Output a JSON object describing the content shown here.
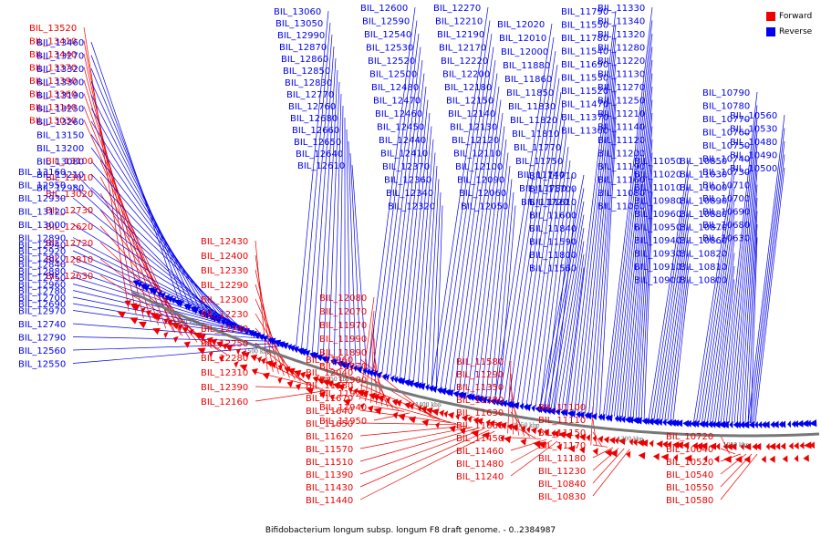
{
  "colors": {
    "forward": "#ee0000",
    "reverse": "#0000ee",
    "backbone": "#777777"
  },
  "legend": [
    {
      "label": "Forward",
      "color": "#ee0000"
    },
    {
      "label": "Reverse",
      "color": "#0000ee"
    }
  ],
  "caption": "Bifidobacterium longum subsp. longum F8 draft genome. - 0..2384987",
  "ticks": [
    "1550 kbp",
    "1500 kbp",
    "1450 kbp",
    "1400 kbp",
    "1350 kbp",
    "1300 kbp",
    "1250 kbp"
  ],
  "forward_labels": [
    "BIL_13520",
    "BIL_13410",
    "BIL_13440",
    "BIL_13370",
    "BIL_13390",
    "BIL_13360",
    "BIL_13140",
    "BIL_13030",
    "BIL_13100",
    "BIL_13010",
    "BIL_13020",
    "BIL_12730",
    "BIL_12620",
    "BIL_12720",
    "BIL_12810",
    "BIL_12630",
    "BIL_12430",
    "BIL_12400",
    "BIL_12330",
    "BIL_12290",
    "BIL_12300",
    "BIL_12230",
    "BIL_12240",
    "BIL_12250",
    "BIL_12280",
    "BIL_12310",
    "BIL_12390",
    "BIL_12160",
    "BIL_12080",
    "BIL_12070",
    "BIL_11970",
    "BIL_11990",
    "BIL_11890",
    "BIL_11870",
    "BIL_11900",
    "BIL_11920",
    "BIL_11940",
    "BIL_11950",
    "BIL_11960",
    "BIL_12040",
    "BIL_11680",
    "BIL_11670",
    "BIL_11640",
    "BIL_11650",
    "BIL_11620",
    "BIL_11570",
    "BIL_11510",
    "BIL_11390",
    "BIL_11430",
    "BIL_11440",
    "BIL_11580",
    "BIL_11290",
    "BIL_11350",
    "BIL_11380",
    "BIL_11630",
    "BIL_11660",
    "BIL_11450",
    "BIL_11460",
    "BIL_11480",
    "BIL_11240",
    "BIL_11100",
    "BIL_11110",
    "BIL_11150",
    "BIL_11170",
    "BIL_11180",
    "BIL_11230",
    "BIL_10840",
    "BIL_10830",
    "BIL_10720",
    "BIL_10640",
    "BIL_10520",
    "BIL_10540",
    "BIL_10550",
    "BIL_10580"
  ],
  "reverse_labels": [
    "BIL_13460",
    "BIL_13270",
    "BIL_13320",
    "BIL_13300",
    "BIL_13190",
    "BIL_13250",
    "BIL_13260",
    "BIL_13150",
    "BIL_13200",
    "BIL_13080",
    "BIL_13210",
    "BIL_12980",
    "BIL_13160",
    "BIL_12950",
    "BIL_12930",
    "BIL_13120",
    "BIL_13000",
    "BIL_12890",
    "BIL_12920",
    "BIL_12840",
    "BIL_12750",
    "BIL_12780",
    "BIL_12690",
    "BIL_12940",
    "BIL_12820",
    "BIL_12880",
    "BIL_12960",
    "BIL_12700",
    "BIL_12970",
    "BIL_12740",
    "BIL_12790",
    "BIL_12560",
    "BIL_12550",
    "BIL_13060",
    "BIL_13050",
    "BIL_12990",
    "BIL_12870",
    "BIL_12860",
    "BIL_12850",
    "BIL_12830",
    "BIL_12770",
    "BIL_12760",
    "BIL_12680",
    "BIL_12660",
    "BIL_12650",
    "BIL_12640",
    "BIL_12610",
    "BIL_12600",
    "BIL_12590",
    "BIL_12540",
    "BIL_12530",
    "BIL_12520",
    "BIL_12500",
    "BIL_12480",
    "BIL_12470",
    "BIL_12460",
    "BIL_12450",
    "BIL_12440",
    "BIL_12410",
    "BIL_12370",
    "BIL_12360",
    "BIL_12340",
    "BIL_12320",
    "BIL_12270",
    "BIL_12210",
    "BIL_12190",
    "BIL_12170",
    "BIL_12220",
    "BIL_12200",
    "BIL_12180",
    "BIL_12150",
    "BIL_12140",
    "BIL_12130",
    "BIL_12120",
    "BIL_12110",
    "BIL_12100",
    "BIL_12090",
    "BIL_12060",
    "BIL_12050",
    "BIL_12020",
    "BIL_12010",
    "BIL_12000",
    "BIL_11880",
    "BIL_11860",
    "BIL_11850",
    "BIL_11830",
    "BIL_11820",
    "BIL_11810",
    "BIL_11770",
    "BIL_11750",
    "BIL_11740",
    "BIL_11730",
    "BIL_11720",
    "BIL_11710",
    "BIL_11700",
    "BIL_11610",
    "BIL_11600",
    "BIL_11840",
    "BIL_11590",
    "BIL_11800",
    "BIL_11560",
    "BIL_11790",
    "BIL_11550",
    "BIL_11780",
    "BIL_11540",
    "BIL_11690",
    "BIL_11530",
    "BIL_11520",
    "BIL_11470",
    "BIL_11370",
    "BIL_11360",
    "BIL_11330",
    "BIL_11340",
    "BIL_11320",
    "BIL_11280",
    "BIL_11220",
    "BIL_11130",
    "BIL_11270",
    "BIL_11250",
    "BIL_11210",
    "BIL_11140",
    "BIL_11120",
    "BIL_11200",
    "BIL_11190",
    "BIL_11160",
    "BIL_11080",
    "BIL_11060",
    "BIL_11050",
    "BIL_11020",
    "BIL_11010",
    "BIL_10980",
    "BIL_10960",
    "BIL_10950",
    "BIL_10940",
    "BIL_10930",
    "BIL_10910",
    "BIL_10900",
    "BIL_10850",
    "BIL_11030",
    "BIL_11000",
    "BIL_10890",
    "BIL_10880",
    "BIL_10870",
    "BIL_10860",
    "BIL_10820",
    "BIL_10810",
    "BIL_10800",
    "BIL_10790",
    "BIL_10780",
    "BIL_10770",
    "BIL_10760",
    "BIL_10750",
    "BIL_10740",
    "BIL_10730",
    "BIL_10710",
    "BIL_10700",
    "BIL_10690",
    "BIL_10680",
    "BIL_10630",
    "BIL_10560",
    "BIL_10530",
    "BIL_10480",
    "BIL_10490",
    "BIL_10500"
  ]
}
